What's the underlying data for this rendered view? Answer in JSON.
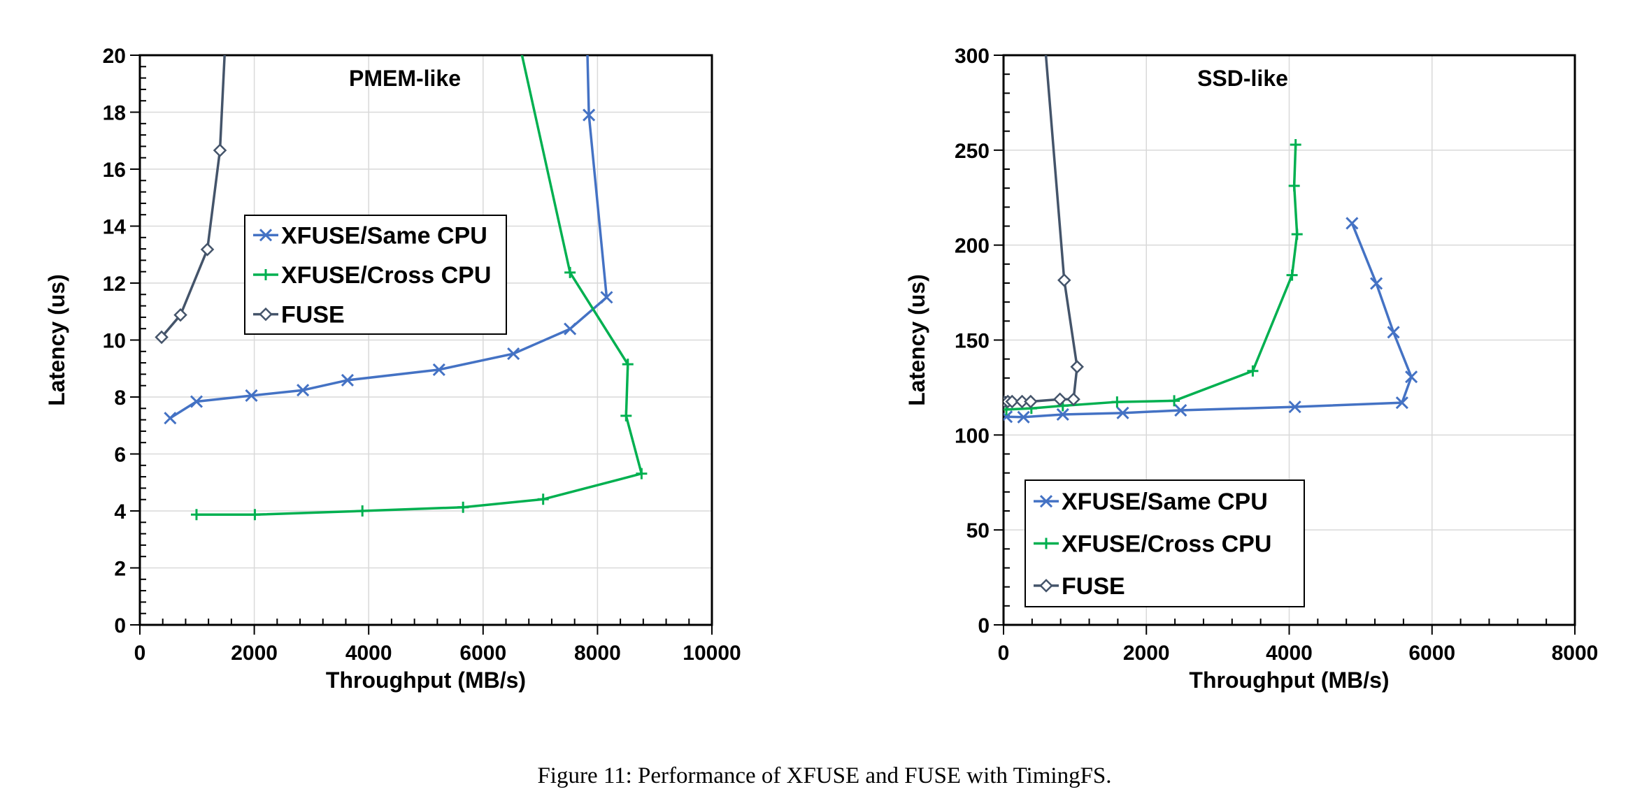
{
  "caption": "Figure 11: Performance of XFUSE and FUSE with TimingFS.",
  "colors": {
    "same_cpu": "#4472C4",
    "cross_cpu": "#00B050",
    "fuse": "#44546A",
    "grid": "#D9D9D9"
  },
  "chart_data": [
    {
      "type": "line",
      "title": "PMEM-like",
      "xlabel": "Throughput (MB/s)",
      "ylabel": "Latency (us)",
      "xlim": [
        0,
        10000
      ],
      "ylim": [
        0,
        20
      ],
      "xticks": [
        0,
        2000,
        4000,
        6000,
        8000,
        10000
      ],
      "yticks": [
        0,
        2,
        4,
        6,
        8,
        10,
        12,
        14,
        16,
        18,
        20
      ],
      "grid": true,
      "legend_position": "center-left",
      "series": [
        {
          "name": "XFUSE/Same CPU",
          "marker": "x",
          "color": "#4472C4",
          "x": [
            530,
            990,
            1950,
            2850,
            3630,
            5230,
            6530,
            7520,
            8160,
            7850,
            7800
          ],
          "y": [
            7.26,
            7.84,
            8.05,
            8.24,
            8.59,
            8.96,
            9.52,
            10.39,
            11.5,
            17.9,
            22
          ]
        },
        {
          "name": "XFUSE/Cross CPU",
          "marker": "plus",
          "color": "#00B050",
          "x": [
            990,
            2010,
            3890,
            5650,
            7050,
            8770,
            8500,
            8530,
            7520,
            6460
          ],
          "y": [
            3.87,
            3.87,
            4.0,
            4.13,
            4.41,
            5.31,
            7.34,
            9.15,
            12.37,
            22
          ]
        },
        {
          "name": "FUSE",
          "marker": "diamond",
          "color": "#44546A",
          "x": [
            380,
            710,
            1180,
            1400,
            1530
          ],
          "y": [
            10.1,
            10.88,
            13.18,
            16.66,
            22
          ]
        }
      ]
    },
    {
      "type": "line",
      "title": "SSD-like",
      "xlabel": "Throughput (MB/s)",
      "ylabel": "Latency (us)",
      "xlim": [
        0,
        8000
      ],
      "ylim": [
        0,
        300
      ],
      "xticks": [
        0,
        2000,
        4000,
        6000,
        8000
      ],
      "yticks": [
        0,
        50,
        100,
        150,
        200,
        250,
        300
      ],
      "grid": true,
      "legend_position": "bottom-left",
      "series": [
        {
          "name": "XFUSE/Same CPU",
          "marker": "x",
          "color": "#4472C4",
          "x": [
            40,
            280,
            830,
            1670,
            2480,
            4080,
            5580,
            5710,
            5460,
            5220,
            4880
          ],
          "y": [
            109.6,
            109.4,
            110.8,
            111.6,
            113.0,
            114.8,
            117.0,
            130.6,
            154.1,
            179.8,
            211.5
          ]
        },
        {
          "name": "XFUSE/Cross CPU",
          "marker": "plus",
          "color": "#00B050",
          "x": [
            40,
            390,
            830,
            1590,
            2390,
            3490,
            4040,
            4110,
            4070,
            4090
          ],
          "y": [
            113.4,
            114.0,
            115.4,
            117.4,
            118.0,
            133.7,
            184.2,
            205.7,
            231.2,
            252.9
          ]
        },
        {
          "name": "FUSE",
          "marker": "diamond",
          "color": "#44546A",
          "x": [
            0,
            60,
            120,
            260,
            380,
            790,
            980,
            1030,
            850,
            550
          ],
          "y": [
            117.4,
            117.6,
            117.6,
            117.6,
            117.6,
            118.8,
            118.8,
            135.9,
            181.5,
            320
          ]
        }
      ]
    }
  ]
}
